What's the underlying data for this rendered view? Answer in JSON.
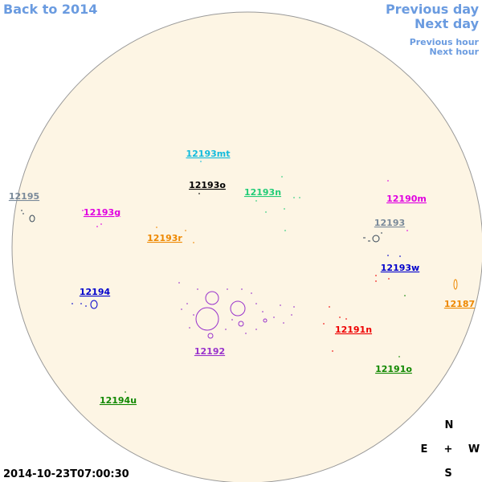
{
  "header": {
    "back": "Back to 2014",
    "previous_day": "Previous day",
    "next_day": "Next day",
    "previous_hour": "Previous hour",
    "next_hour": "Next hour"
  },
  "regions": [
    {
      "label": "12195",
      "color": "#7a8a9a"
    },
    {
      "label": "12193g",
      "color": "#e000e0"
    },
    {
      "label": "12193r",
      "color": "#ee8800"
    },
    {
      "label": "12193mt",
      "color": "#11bbdd"
    },
    {
      "label": "12193o",
      "color": "#000000"
    },
    {
      "label": "12193n",
      "color": "#22cc77"
    },
    {
      "label": "12190m",
      "color": "#e000e0"
    },
    {
      "label": "12193",
      "color": "#7a8a9a"
    },
    {
      "label": "12193w",
      "color": "#0000cc"
    },
    {
      "label": "12187",
      "color": "#ee8800"
    },
    {
      "label": "12194",
      "color": "#0000cc"
    },
    {
      "label": "12192",
      "color": "#9933cc"
    },
    {
      "label": "12191n",
      "color": "#ee0000"
    },
    {
      "label": "12191o",
      "color": "#118800"
    },
    {
      "label": "12194u",
      "color": "#118800"
    }
  ],
  "compass": {
    "north": "N",
    "east": "E",
    "center": "+",
    "west": "W",
    "south": "S"
  },
  "timestamp": "2014-10-23T07:00:30"
}
